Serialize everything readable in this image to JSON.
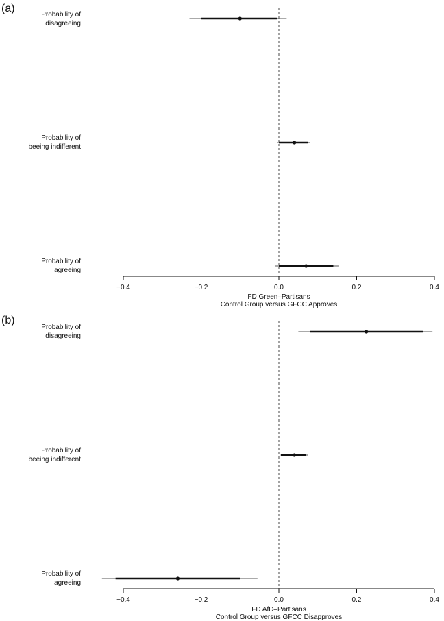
{
  "chart_data": [
    {
      "type": "coefficient-plot",
      "panel_label": "(a)",
      "categories": [
        "Probability of\ndisagreeing",
        "Probability of\nbeeing indifferent",
        "Probability of\nagreeing"
      ],
      "points": [
        {
          "estimate": -0.1,
          "inner": [
            -0.2,
            -0.005
          ],
          "outer": [
            -0.23,
            0.02
          ]
        },
        {
          "estimate": 0.04,
          "inner": [
            0.0,
            0.075
          ],
          "outer": [
            -0.005,
            0.08
          ]
        },
        {
          "estimate": 0.07,
          "inner": [
            0.0,
            0.14
          ],
          "outer": [
            -0.01,
            0.155
          ]
        }
      ],
      "x_ticks": [
        -0.4,
        -0.2,
        0.0,
        0.2,
        0.4
      ],
      "x_tick_labels": [
        "−0.4",
        "−0.2",
        "0.0",
        "0.2",
        "0.4"
      ],
      "xlim": [
        -0.4,
        0.4
      ],
      "reference_line": 0,
      "xlabel": [
        "FD Green–Partisans",
        "Control Group versus GFCC Approves"
      ]
    },
    {
      "type": "coefficient-plot",
      "panel_label": "(b)",
      "categories": [
        "Probability of\ndisagreeing",
        "Probability of\nbeeing indifferent",
        "Probability of\nagreeing"
      ],
      "points": [
        {
          "estimate": 0.225,
          "inner": [
            0.08,
            0.37
          ],
          "outer": [
            0.05,
            0.395
          ]
        },
        {
          "estimate": 0.04,
          "inner": [
            0.005,
            0.07
          ],
          "outer": [
            0.005,
            0.075
          ]
        },
        {
          "estimate": -0.26,
          "inner": [
            -0.42,
            -0.1
          ],
          "outer": [
            -0.455,
            -0.055
          ]
        }
      ],
      "x_ticks": [
        -0.4,
        -0.2,
        0.0,
        0.2,
        0.4
      ],
      "x_tick_labels": [
        "−0.4",
        "−0.2",
        "0.0",
        "0.2",
        "0.4"
      ],
      "xlim": [
        -0.4,
        0.4
      ],
      "reference_line": 0,
      "xlabel": [
        "FD AfD–Partisans",
        "Control Group versus GFCC Disapproves"
      ]
    }
  ]
}
